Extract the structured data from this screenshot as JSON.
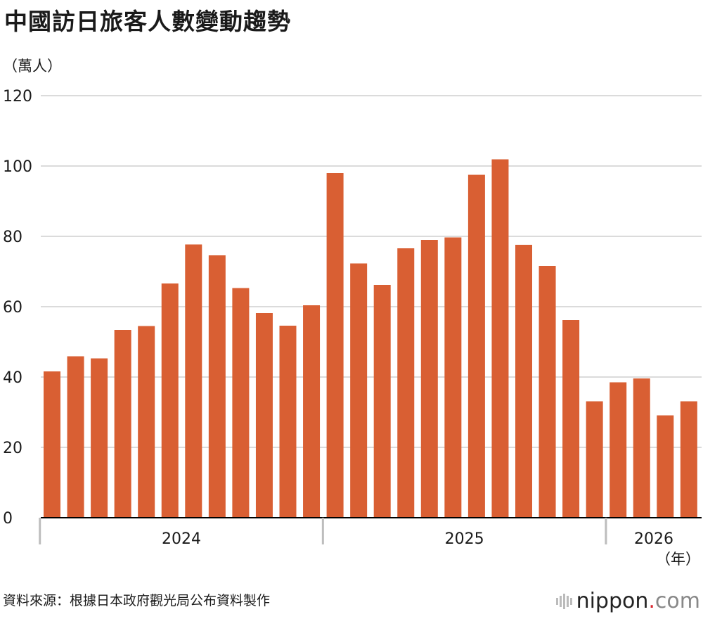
{
  "title": "中國訪日旅客人數變動趨勢",
  "unit_label": "（萬人）",
  "source": "資料來源：根據日本政府觀光局公布資料製作",
  "brand": {
    "name": "nippon",
    "dot": ".",
    "tld": "com"
  },
  "colors": {
    "bar": "#d95f33",
    "grid": "#cfcfcf",
    "axis": "#000000"
  },
  "chart_data": {
    "type": "bar",
    "title": "中國訪日旅客人數變動趨勢",
    "ylabel": "（萬人）",
    "xlabel": "（年）",
    "ylim": [
      0,
      120
    ],
    "yticks": [
      0,
      20,
      40,
      60,
      80,
      100,
      120
    ],
    "grid": true,
    "year_groups": [
      {
        "label": "2024",
        "count": 12
      },
      {
        "label": "2025",
        "count": 12
      },
      {
        "label": "2026",
        "count": 4
      }
    ],
    "values": [
      41.6,
      45.9,
      45.3,
      53.4,
      54.5,
      66.6,
      77.7,
      74.6,
      65.3,
      58.2,
      54.6,
      60.4,
      98.0,
      72.3,
      66.2,
      76.6,
      79.0,
      79.7,
      97.5,
      101.9,
      77.6,
      71.6,
      56.2,
      33.1,
      38.5,
      39.6,
      29.1,
      33.1
    ]
  }
}
